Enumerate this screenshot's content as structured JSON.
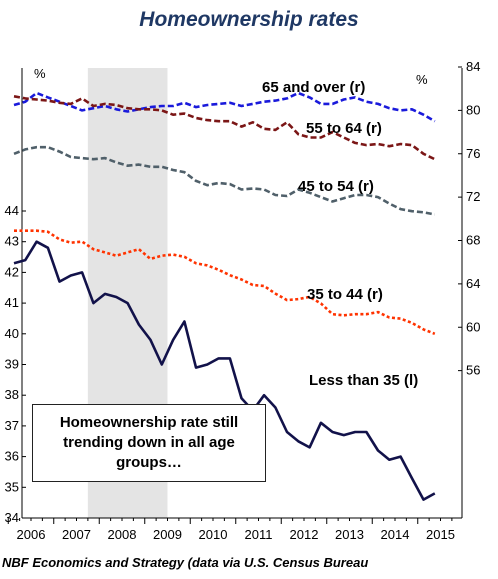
{
  "chart_data": {
    "type": "line",
    "title": "Homeownership rates",
    "left_axis": {
      "unit_label": "%",
      "ylim": [
        34,
        44
      ],
      "ticks": [
        34,
        35,
        36,
        37,
        38,
        39,
        40,
        41,
        42,
        43,
        44
      ]
    },
    "right_axis": {
      "unit_label": "%",
      "ylim": [
        52,
        84
      ],
      "ticks": [
        56,
        60,
        64,
        68,
        72,
        76,
        80,
        84
      ]
    },
    "x_ticks": [
      "2006",
      "2007",
      "2008",
      "2009",
      "2010",
      "2011",
      "2012",
      "2013",
      "2014",
      "2015"
    ],
    "shaded_region": {
      "from": "2007-Q4",
      "to": "2009-Q2"
    },
    "quarters": [
      "2006-Q1",
      "2006-Q2",
      "2006-Q3",
      "2006-Q4",
      "2007-Q1",
      "2007-Q2",
      "2007-Q3",
      "2007-Q4",
      "2008-Q1",
      "2008-Q2",
      "2008-Q3",
      "2008-Q4",
      "2009-Q1",
      "2009-Q2",
      "2009-Q3",
      "2009-Q4",
      "2010-Q1",
      "2010-Q2",
      "2010-Q3",
      "2010-Q4",
      "2011-Q1",
      "2011-Q2",
      "2011-Q3",
      "2011-Q4",
      "2012-Q1",
      "2012-Q2",
      "2012-Q3",
      "2012-Q4",
      "2013-Q1",
      "2013-Q2",
      "2013-Q3",
      "2013-Q4",
      "2014-Q1",
      "2014-Q2",
      "2014-Q3",
      "2014-Q4",
      "2015-Q1",
      "2015-Q2"
    ],
    "series": [
      {
        "name": "65 and over (r)",
        "axis": "right",
        "color": "#1a1adb",
        "dash": "6,3",
        "values": [
          80.5,
          80.8,
          81.6,
          81.2,
          80.8,
          80.4,
          80.0,
          80.2,
          80.4,
          80.1,
          79.9,
          80.1,
          80.3,
          80.4,
          80.4,
          80.7,
          80.3,
          80.5,
          80.6,
          80.7,
          80.4,
          80.6,
          80.8,
          80.9,
          81.1,
          81.6,
          81.2,
          80.6,
          80.6,
          81.0,
          81.2,
          80.8,
          80.6,
          80.2,
          80.0,
          80.1,
          79.6,
          79.0
        ]
      },
      {
        "name": "55 to 64 (r)",
        "axis": "right",
        "color": "#7b1616",
        "dash": "6,3",
        "values": [
          81.3,
          81.1,
          81.0,
          80.9,
          80.7,
          80.6,
          81.1,
          80.4,
          80.6,
          80.5,
          80.2,
          80.1,
          80.1,
          80.0,
          79.6,
          79.7,
          79.3,
          79.1,
          79.0,
          79.0,
          78.5,
          78.9,
          78.3,
          78.2,
          78.9,
          77.8,
          77.5,
          77.5,
          78.0,
          77.5,
          77.0,
          76.8,
          76.9,
          76.7,
          76.9,
          76.8,
          76.0,
          75.5
        ]
      },
      {
        "name": "45 to 54 (r)",
        "axis": "right",
        "color": "#50606a",
        "dash": "6,3",
        "values": [
          76.0,
          76.4,
          76.6,
          76.6,
          76.2,
          75.7,
          75.6,
          75.5,
          75.6,
          75.2,
          74.9,
          75.0,
          74.8,
          74.8,
          74.5,
          74.3,
          73.5,
          73.1,
          73.3,
          73.2,
          72.7,
          72.8,
          72.7,
          72.2,
          72.1,
          72.7,
          72.4,
          72.0,
          71.6,
          71.9,
          72.2,
          72.2,
          72.0,
          71.4,
          70.9,
          70.7,
          70.6,
          70.4
        ]
      },
      {
        "name": "35 to 44 (r)",
        "axis": "right",
        "color": "#ff3300",
        "dash": "3,2.5",
        "values": [
          68.9,
          68.9,
          68.9,
          68.8,
          68.1,
          67.8,
          67.9,
          67.2,
          66.9,
          66.6,
          66.9,
          67.2,
          66.3,
          66.6,
          66.7,
          66.5,
          65.9,
          65.7,
          65.3,
          64.8,
          64.4,
          63.9,
          63.8,
          63.1,
          62.5,
          62.6,
          62.8,
          62.2,
          61.2,
          61.1,
          61.2,
          61.2,
          61.4,
          60.9,
          60.8,
          60.4,
          59.8,
          59.4
        ]
      },
      {
        "name": "Less than 35 (l)",
        "axis": "left",
        "color": "#12124a",
        "dash": "",
        "values": [
          42.3,
          42.4,
          43.0,
          42.8,
          41.7,
          41.9,
          42.0,
          41.0,
          41.3,
          41.2,
          41.0,
          40.3,
          39.8,
          39.0,
          39.8,
          40.4,
          38.9,
          39.0,
          39.2,
          39.2,
          37.9,
          37.5,
          38.0,
          37.6,
          36.8,
          36.5,
          36.3,
          37.1,
          36.8,
          36.7,
          36.8,
          36.8,
          36.2,
          35.9,
          36.0,
          35.3,
          34.6,
          34.8
        ]
      }
    ]
  },
  "annotation": {
    "line1": "Homeownership rate still",
    "line2": "trending down in all age",
    "line3": "groups…"
  },
  "source": "NBF Economics and Strategy (data via U.S. Census Bureau"
}
